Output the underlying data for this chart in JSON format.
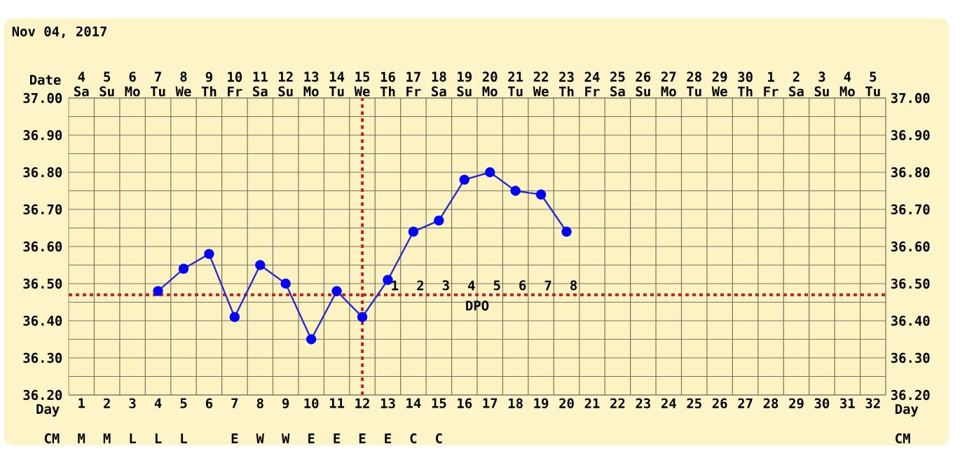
{
  "chart_data": {
    "type": "line",
    "title": "Nov 04, 2017",
    "xlabel": "Day",
    "categories": [
      "1",
      "2",
      "3",
      "4",
      "5",
      "6",
      "7",
      "8",
      "9",
      "10",
      "11",
      "12",
      "13",
      "14",
      "15",
      "16",
      "17",
      "18",
      "19",
      "20",
      "21",
      "22",
      "23",
      "24",
      "25",
      "26",
      "27",
      "28",
      "29",
      "30",
      "31",
      "32"
    ],
    "series": [
      {
        "color": "#2a2ad0",
        "values": [
          null,
          null,
          null,
          36.48,
          36.54,
          36.58,
          36.41,
          36.55,
          36.5,
          36.35,
          36.48,
          36.41,
          36.51,
          36.64,
          36.67,
          36.78,
          36.8,
          36.75,
          36.74,
          36.64,
          null,
          null,
          null,
          null,
          null,
          null,
          null,
          null,
          null,
          null,
          null,
          null
        ]
      }
    ],
    "ylim": [
      36.2,
      37.0
    ],
    "yticks": [
      {
        "value": 36.2,
        "label": "36.20"
      },
      {
        "value": 36.3,
        "label": "36.30"
      },
      {
        "value": 36.4,
        "label": "36.40"
      },
      {
        "value": 36.5,
        "label": "36.50"
      },
      {
        "value": 36.6,
        "label": "36.60"
      },
      {
        "value": 36.7,
        "label": "36.70"
      },
      {
        "value": 36.8,
        "label": "36.80"
      },
      {
        "value": 36.9,
        "label": "36.90"
      },
      {
        "value": 37.0,
        "label": "37.00"
      }
    ],
    "y2lim": [
      36.2,
      37.0
    ],
    "y2ticks": [
      {
        "value": 36.2,
        "label": "36.20"
      },
      {
        "value": 36.3,
        "label": "36.30"
      },
      {
        "value": 36.4,
        "label": "36.40"
      },
      {
        "value": 36.5,
        "label": "36.50"
      },
      {
        "value": 36.6,
        "label": "36.60"
      },
      {
        "value": 36.7,
        "label": "36.70"
      },
      {
        "value": 36.8,
        "label": "36.80"
      },
      {
        "value": 36.9,
        "label": "36.90"
      },
      {
        "value": 37.0,
        "label": "37.00"
      }
    ],
    "ref_lines": [
      {
        "axis": "x",
        "value": "12",
        "color": "#d02020",
        "line_style": "dotted"
      },
      {
        "axis": "y",
        "value": 36.47,
        "color": "#d02020",
        "line_style": "dotted"
      }
    ],
    "annotations": [
      "Date",
      "4 Sa",
      "5 Su",
      "6 Mo",
      "7 Tu",
      "8 We",
      "9 Th",
      "10 Fr",
      "11 Sa",
      "12 Su",
      "13 Mo",
      "14 Tu",
      "15 We",
      "16 Th",
      "17 Fr",
      "18 Sa",
      "19 Su",
      "20 Mo",
      "21 Tu",
      "22 We",
      "23 Th",
      "24 Fr",
      "25 Sa",
      "26 Su",
      "27 Mo",
      "28 Tu",
      "29 We",
      "30 Th",
      "1 Fr",
      "2 Sa",
      "3 Su",
      "4 Mo",
      "5 Tu",
      "CM",
      "M",
      "M",
      "L",
      "L",
      "L",
      null,
      "E",
      "W",
      "W",
      "E",
      "E",
      "E",
      "E",
      "C",
      "C",
      null,
      null,
      null,
      null,
      null,
      null,
      null,
      null,
      null,
      null,
      null,
      null,
      null,
      null,
      null,
      null,
      null,
      "1",
      "2",
      "3",
      "4",
      "5",
      "6",
      "7",
      "8",
      "DPO"
    ],
    "grid": true,
    "marker": "circle",
    "line_style": "solid"
  }
}
